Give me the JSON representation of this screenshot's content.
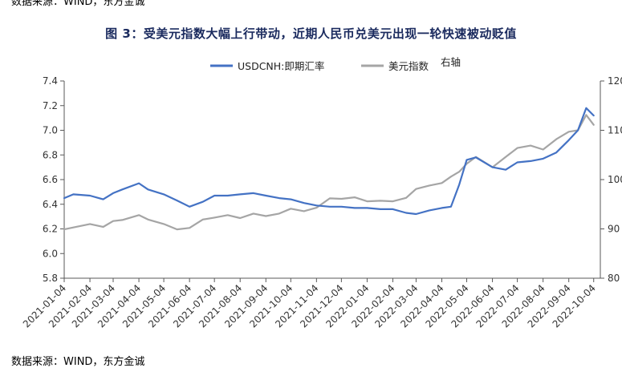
{
  "header": {
    "source_text": "数据来源：WIND，东方金诚"
  },
  "title": "图 3：受美元指数大幅上行带动，近期人民币兑美元出现一轮快速被动贬值",
  "footer": {
    "source_text": "数据来源：WIND，东方金诚"
  },
  "colors": {
    "usdcnh": "#4472C4",
    "dxy": "#A5A5A5",
    "axis": "#595959"
  },
  "chart_data": {
    "type": "line",
    "title": "图 3：受美元指数大幅上行带动，近期人民币兑美元出现一轮快速被动贬值",
    "left_axis": {
      "ylim": [
        5.8,
        7.4
      ],
      "ticks": [
        "5.8",
        "6.0",
        "6.2",
        "6.4",
        "6.6",
        "6.8",
        "7.0",
        "7.2",
        "7.4"
      ]
    },
    "right_axis": {
      "label": "右轴",
      "ylim": [
        80,
        120
      ],
      "ticks": [
        "80",
        "90",
        "100",
        "110",
        "120"
      ]
    },
    "x_ticks": [
      "2021-01-04",
      "2021-02-04",
      "2021-03-04",
      "2021-04-04",
      "2021-05-04",
      "2021-06-04",
      "2021-07-04",
      "2021-08-04",
      "2021-09-04",
      "2021-10-04",
      "2021-11-04",
      "2021-12-04",
      "2022-01-04",
      "2022-02-04",
      "2022-03-04",
      "2022-04-04",
      "2022-05-04",
      "2022-06-04",
      "2022-07-04",
      "2022-08-04",
      "2022-09-04",
      "2022-10-04"
    ],
    "legend_position": "top-center",
    "grid": false,
    "series": [
      {
        "name": "USDCNH:即期汇率",
        "axis": "left",
        "x": [
          "2021-01-04",
          "2021-01-15",
          "2021-02-04",
          "2021-02-20",
          "2021-03-04",
          "2021-03-15",
          "2021-04-04",
          "2021-04-15",
          "2021-05-04",
          "2021-05-20",
          "2021-06-04",
          "2021-06-20",
          "2021-07-04",
          "2021-07-20",
          "2021-08-04",
          "2021-08-20",
          "2021-09-04",
          "2021-09-20",
          "2021-10-04",
          "2021-10-20",
          "2021-11-04",
          "2021-11-20",
          "2021-12-04",
          "2021-12-20",
          "2022-01-04",
          "2022-01-20",
          "2022-02-04",
          "2022-02-20",
          "2022-03-04",
          "2022-03-20",
          "2022-04-04",
          "2022-04-15",
          "2022-04-25",
          "2022-05-04",
          "2022-05-15",
          "2022-06-04",
          "2022-06-20",
          "2022-07-04",
          "2022-07-20",
          "2022-08-04",
          "2022-08-20",
          "2022-09-04",
          "2022-09-15",
          "2022-09-25",
          "2022-10-04"
        ],
        "values": [
          6.45,
          6.48,
          6.47,
          6.44,
          6.49,
          6.52,
          6.57,
          6.52,
          6.48,
          6.43,
          6.38,
          6.42,
          6.47,
          6.47,
          6.48,
          6.49,
          6.47,
          6.45,
          6.44,
          6.41,
          6.39,
          6.38,
          6.38,
          6.37,
          6.37,
          6.36,
          6.36,
          6.33,
          6.32,
          6.35,
          6.37,
          6.38,
          6.56,
          6.76,
          6.78,
          6.7,
          6.68,
          6.74,
          6.75,
          6.77,
          6.82,
          6.92,
          7.0,
          7.18,
          7.12
        ]
      },
      {
        "name": "美元指数",
        "axis": "right",
        "x": [
          "2021-01-04",
          "2021-01-15",
          "2021-02-04",
          "2021-02-20",
          "2021-03-04",
          "2021-03-15",
          "2021-04-04",
          "2021-04-15",
          "2021-05-04",
          "2021-05-20",
          "2021-06-04",
          "2021-06-20",
          "2021-07-04",
          "2021-07-20",
          "2021-08-04",
          "2021-08-20",
          "2021-09-04",
          "2021-09-20",
          "2021-10-04",
          "2021-10-20",
          "2021-11-04",
          "2021-11-20",
          "2021-12-04",
          "2021-12-20",
          "2022-01-04",
          "2022-01-20",
          "2022-02-04",
          "2022-02-20",
          "2022-03-04",
          "2022-03-20",
          "2022-04-04",
          "2022-04-15",
          "2022-04-25",
          "2022-05-04",
          "2022-05-15",
          "2022-06-04",
          "2022-06-20",
          "2022-07-04",
          "2022-07-20",
          "2022-08-04",
          "2022-08-20",
          "2022-09-04",
          "2022-09-15",
          "2022-09-25",
          "2022-10-04"
        ],
        "values": [
          89.9,
          90.3,
          91.0,
          90.4,
          91.6,
          91.8,
          92.8,
          91.9,
          91.0,
          89.9,
          90.2,
          91.9,
          92.3,
          92.8,
          92.2,
          93.1,
          92.6,
          93.1,
          94.1,
          93.6,
          94.3,
          96.2,
          96.1,
          96.4,
          95.6,
          95.7,
          95.6,
          96.3,
          98.1,
          98.8,
          99.3,
          100.6,
          101.6,
          103.2,
          104.6,
          102.5,
          104.6,
          106.4,
          106.9,
          106.1,
          108.2,
          109.7,
          110.0,
          113.1,
          111.1
        ]
      }
    ]
  }
}
